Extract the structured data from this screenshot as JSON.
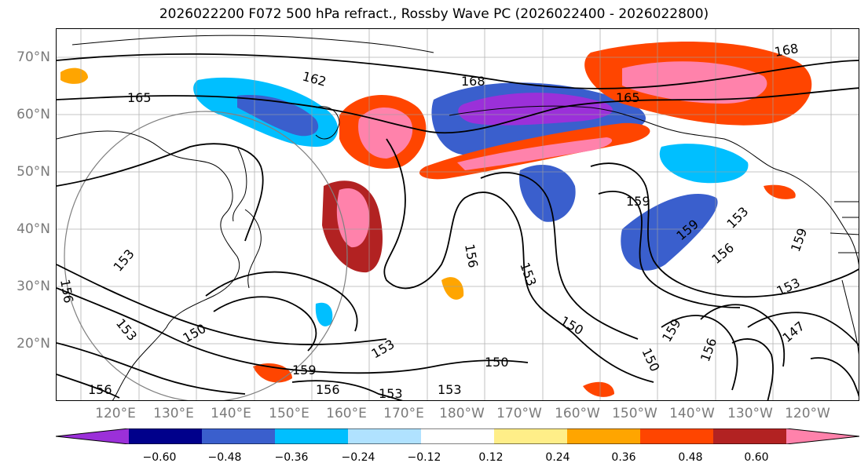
{
  "title": "2026022200 F072 500 hPa refract., Rossby Wave PC (2026022400 - 2026022800)",
  "lat_labels": [
    "70°N",
    "60°N",
    "50°N",
    "40°N",
    "30°N",
    "20°N"
  ],
  "lon_labels": [
    "120°E",
    "130°E",
    "140°E",
    "150°E",
    "160°E",
    "170°E",
    "180°W",
    "170°W",
    "160°W",
    "150°W",
    "140°W",
    "130°W",
    "120°W"
  ],
  "colorbar": {
    "colors": [
      "#9b30d9",
      "#00008b",
      "#3a5fcd",
      "#00bfff",
      "#b0e2ff",
      "#ffffff",
      "#ffee88",
      "#ffa500",
      "#ff4500",
      "#b22222",
      "#ff82ab"
    ],
    "tick_labels": [
      "−0.60",
      "−0.48",
      "−0.36",
      "−0.24",
      "−0.12",
      "0.12",
      "0.24",
      "0.36",
      "0.48",
      "0.60"
    ]
  },
  "contour_labels": [
    "162",
    "165",
    "168",
    "168",
    "165",
    "159",
    "159",
    "159",
    "156",
    "153",
    "153",
    "159",
    "153",
    "150",
    "150",
    "153",
    "150",
    "153",
    "153",
    "156",
    "150",
    "147",
    "156",
    "159",
    "156",
    "156",
    "153",
    "156",
    "153"
  ],
  "colors": {
    "land_outline": "#000000",
    "grid": "#a0a0a0",
    "contour": "#000000",
    "tick_text": "#7a7a7a"
  }
}
